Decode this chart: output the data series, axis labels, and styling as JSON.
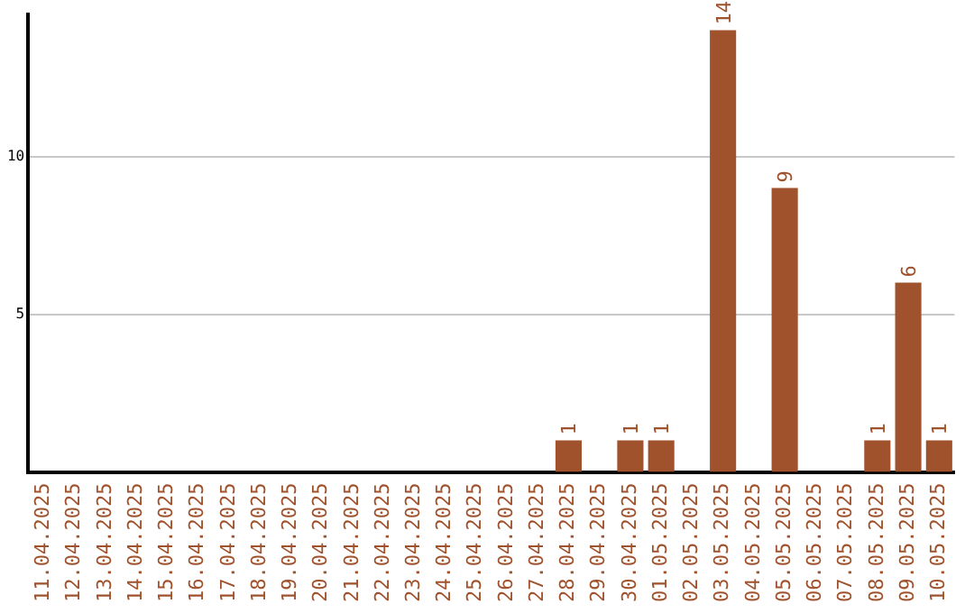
{
  "chart_data": {
    "type": "bar",
    "categories": [
      "11.04.2025",
      "12.04.2025",
      "13.04.2025",
      "14.04.2025",
      "15.04.2025",
      "16.04.2025",
      "17.04.2025",
      "18.04.2025",
      "19.04.2025",
      "20.04.2025",
      "21.04.2025",
      "22.04.2025",
      "23.04.2025",
      "24.04.2025",
      "25.04.2025",
      "26.04.2025",
      "27.04.2025",
      "28.04.2025",
      "29.04.2025",
      "30.04.2025",
      "01.05.2025",
      "02.05.2025",
      "03.05.2025",
      "04.05.2025",
      "05.05.2025",
      "06.05.2025",
      "07.05.2025",
      "08.05.2025",
      "09.05.2025",
      "10.05.2025"
    ],
    "values": [
      0,
      0,
      0,
      0,
      0,
      0,
      0,
      0,
      0,
      0,
      0,
      0,
      0,
      0,
      0,
      0,
      0,
      1,
      0,
      1,
      1,
      0,
      14,
      0,
      9,
      0,
      0,
      1,
      6,
      1
    ],
    "value_labels": [
      null,
      null,
      null,
      null,
      null,
      null,
      null,
      null,
      null,
      null,
      null,
      null,
      null,
      null,
      null,
      null,
      null,
      "1",
      null,
      "1",
      "1",
      null,
      "14",
      null,
      "9",
      null,
      null,
      "1",
      "6",
      "1"
    ],
    "color": "#a0522d",
    "ylim": [
      0,
      14.5
    ],
    "yticks": [
      5,
      10
    ],
    "grid": "y",
    "legend": false
  }
}
